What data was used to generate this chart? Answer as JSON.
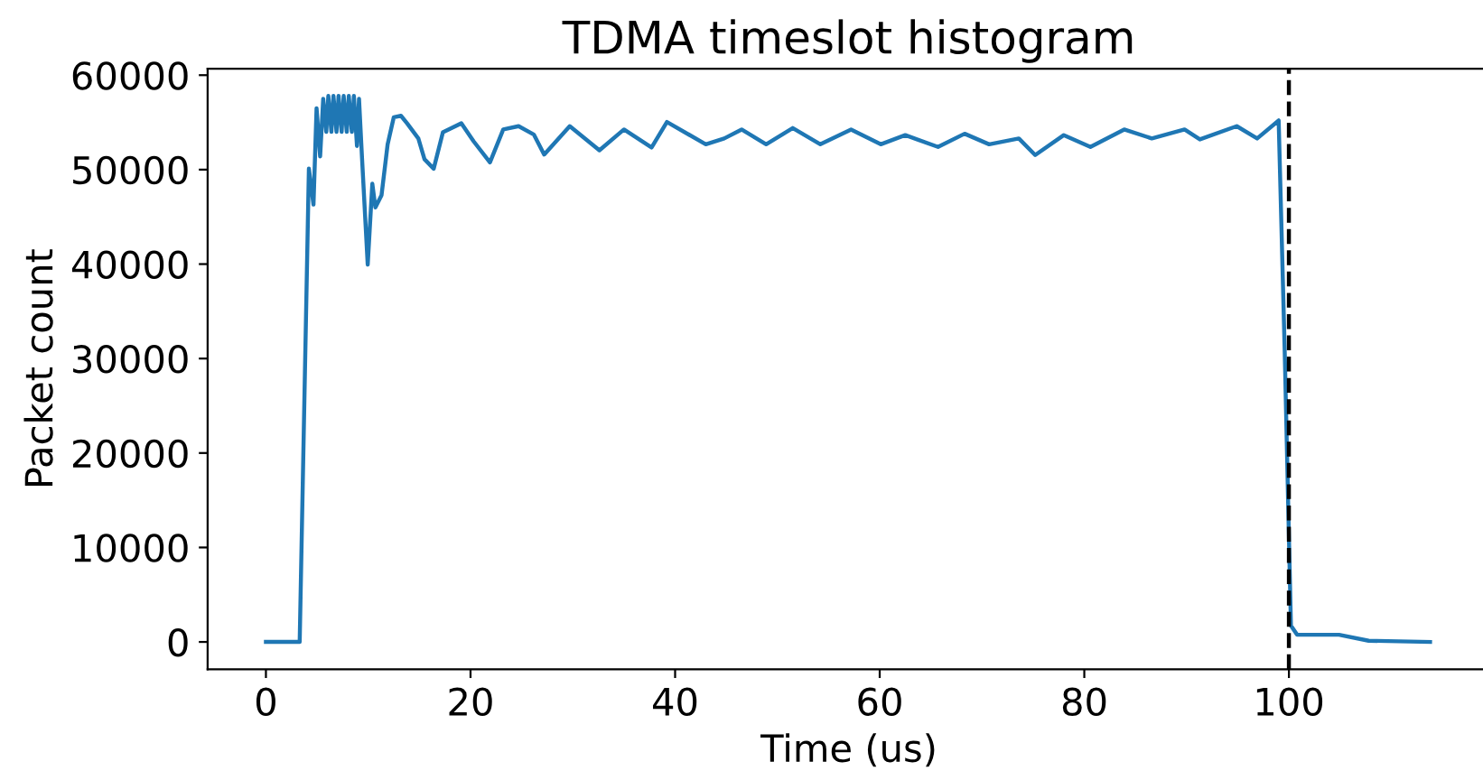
{
  "chart_data": {
    "type": "line",
    "title": "TDMA timeslot histogram",
    "xlabel": "Time (us)",
    "ylabel": "Packet count",
    "x": [
      0,
      3.3,
      4.2,
      4.65,
      4.95,
      5.3,
      5.6,
      5.9,
      6.1,
      6.4,
      6.6,
      6.9,
      7.1,
      7.4,
      7.6,
      7.9,
      8.1,
      8.4,
      8.6,
      8.9,
      9.1,
      9.4,
      9.95,
      10.4,
      10.7,
      11.3,
      11.9,
      12.5,
      13.2,
      13.8,
      14.9,
      15.5,
      16.4,
      17.3,
      19.1,
      20.3,
      21.9,
      23.2,
      24.7,
      26.2,
      27.2,
      29.7,
      32.6,
      35,
      37.7,
      39.2,
      43,
      44.8,
      46.5,
      48.9,
      51.5,
      54.2,
      57.2,
      60.1,
      62.5,
      65.7,
      68.3,
      70.7,
      73.6,
      75.2,
      78,
      80.6,
      83.9,
      86.6,
      89.8,
      91.3,
      94.9,
      96.9,
      99,
      99.6,
      100.2,
      100.8,
      104.9,
      107.8,
      113.8
    ],
    "series": [
      {
        "color": "#1f77b4",
        "values": [
          0,
          0,
          50100,
          46300,
          56500,
          51400,
          57500,
          54000,
          57800,
          54000,
          57800,
          54000,
          57800,
          54000,
          57800,
          54000,
          57800,
          54000,
          57800,
          52500,
          57500,
          51100,
          39940,
          48500,
          46000,
          47300,
          52700,
          55550,
          55700,
          54900,
          53300,
          51100,
          50100,
          53960,
          54900,
          53000,
          50770,
          54250,
          54600,
          53700,
          51600,
          54600,
          52050,
          54250,
          52350,
          55040,
          52680,
          53300,
          54250,
          52680,
          54400,
          52680,
          54250,
          52680,
          53650,
          52400,
          53800,
          52680,
          53300,
          51540,
          53650,
          52400,
          54250,
          53300,
          54250,
          53200,
          54600,
          53300,
          55200,
          30400,
          1720,
          760,
          760,
          130,
          0
        ]
      }
    ],
    "xlim": [
      -5.7,
      119.7
    ],
    "ylim": [
      -2890,
      60690
    ],
    "xticks": [
      0,
      20,
      40,
      60,
      80,
      100
    ],
    "yticks": [
      0,
      10000,
      20000,
      30000,
      40000,
      50000,
      60000
    ],
    "ref_lines": [
      {
        "axis": "x",
        "value": 100,
        "color": "#000000",
        "line_style": "dashed"
      }
    ],
    "grid": false,
    "legend": false
  }
}
